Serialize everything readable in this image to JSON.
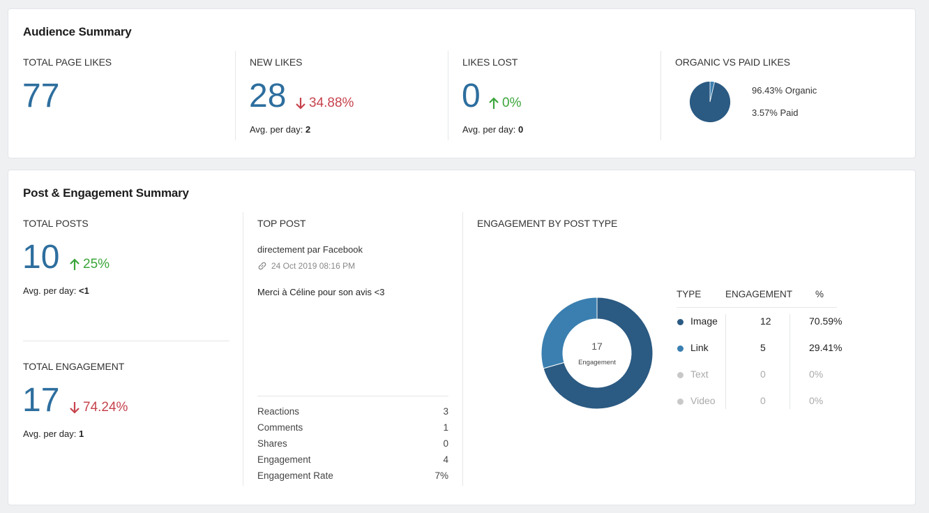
{
  "audience": {
    "title": "Audience Summary",
    "total_likes": {
      "label": "TOTAL PAGE LIKES",
      "value": "77"
    },
    "new_likes": {
      "label": "NEW LIKES",
      "value": "28",
      "delta": "34.88%",
      "avg_label": "Avg. per day:",
      "avg_value": "2"
    },
    "likes_lost": {
      "label": "LIKES LOST",
      "value": "0",
      "delta": "0%",
      "avg_label": "Avg. per day:",
      "avg_value": "0"
    },
    "organic_paid": {
      "label": "ORGANIC VS PAID LIKES",
      "organic_text": "96.43% Organic",
      "paid_text": "3.57% Paid",
      "organic_fraction": 0.9643,
      "paid_fraction": 0.0357
    }
  },
  "engagement": {
    "title": "Post & Engagement Summary",
    "total_posts": {
      "label": "TOTAL POSTS",
      "value": "10",
      "delta": "25%",
      "avg_label": "Avg. per day:",
      "avg_value": "<1"
    },
    "total_engagement": {
      "label": "TOTAL ENGAGEMENT",
      "value": "17",
      "delta": "74.24%",
      "avg_label": "Avg. per day:",
      "avg_value": "1"
    },
    "top_post": {
      "label": "TOP POST",
      "source": "directement par Facebook",
      "date": "24 Oct 2019 08:16 PM",
      "message": "Merci à Céline pour son avis <3",
      "stats": [
        {
          "label": "Reactions",
          "value": "3"
        },
        {
          "label": "Comments",
          "value": "1"
        },
        {
          "label": "Shares",
          "value": "0"
        },
        {
          "label": "Engagement",
          "value": "4"
        },
        {
          "label": "Engagement Rate",
          "value": "7%"
        }
      ]
    },
    "by_type": {
      "label": "ENGAGEMENT BY POST TYPE",
      "donut_total": "17",
      "donut_caption": "Engagement",
      "headers": {
        "type": "TYPE",
        "engagement": "ENGAGEMENT",
        "pct": "%"
      },
      "rows": [
        {
          "type": "Image",
          "engagement": "12",
          "pct": "70.59%",
          "fraction": 0.7059,
          "color": "#2b5a82",
          "active": true
        },
        {
          "type": "Link",
          "engagement": "5",
          "pct": "29.41%",
          "fraction": 0.2941,
          "color": "#3a7fb0",
          "active": true
        },
        {
          "type": "Text",
          "engagement": "0",
          "pct": "0%",
          "fraction": 0,
          "color": "#c8c8c8",
          "active": false
        },
        {
          "type": "Video",
          "engagement": "0",
          "pct": "0%",
          "fraction": 0,
          "color": "#c8c8c8",
          "active": false
        }
      ]
    }
  },
  "colors": {
    "accent": "#2d6e9e",
    "negative": "#c6434d",
    "positive": "#3aa53a",
    "pie_dark": "#2b5a82",
    "pie_light": "#3a7fb0"
  }
}
